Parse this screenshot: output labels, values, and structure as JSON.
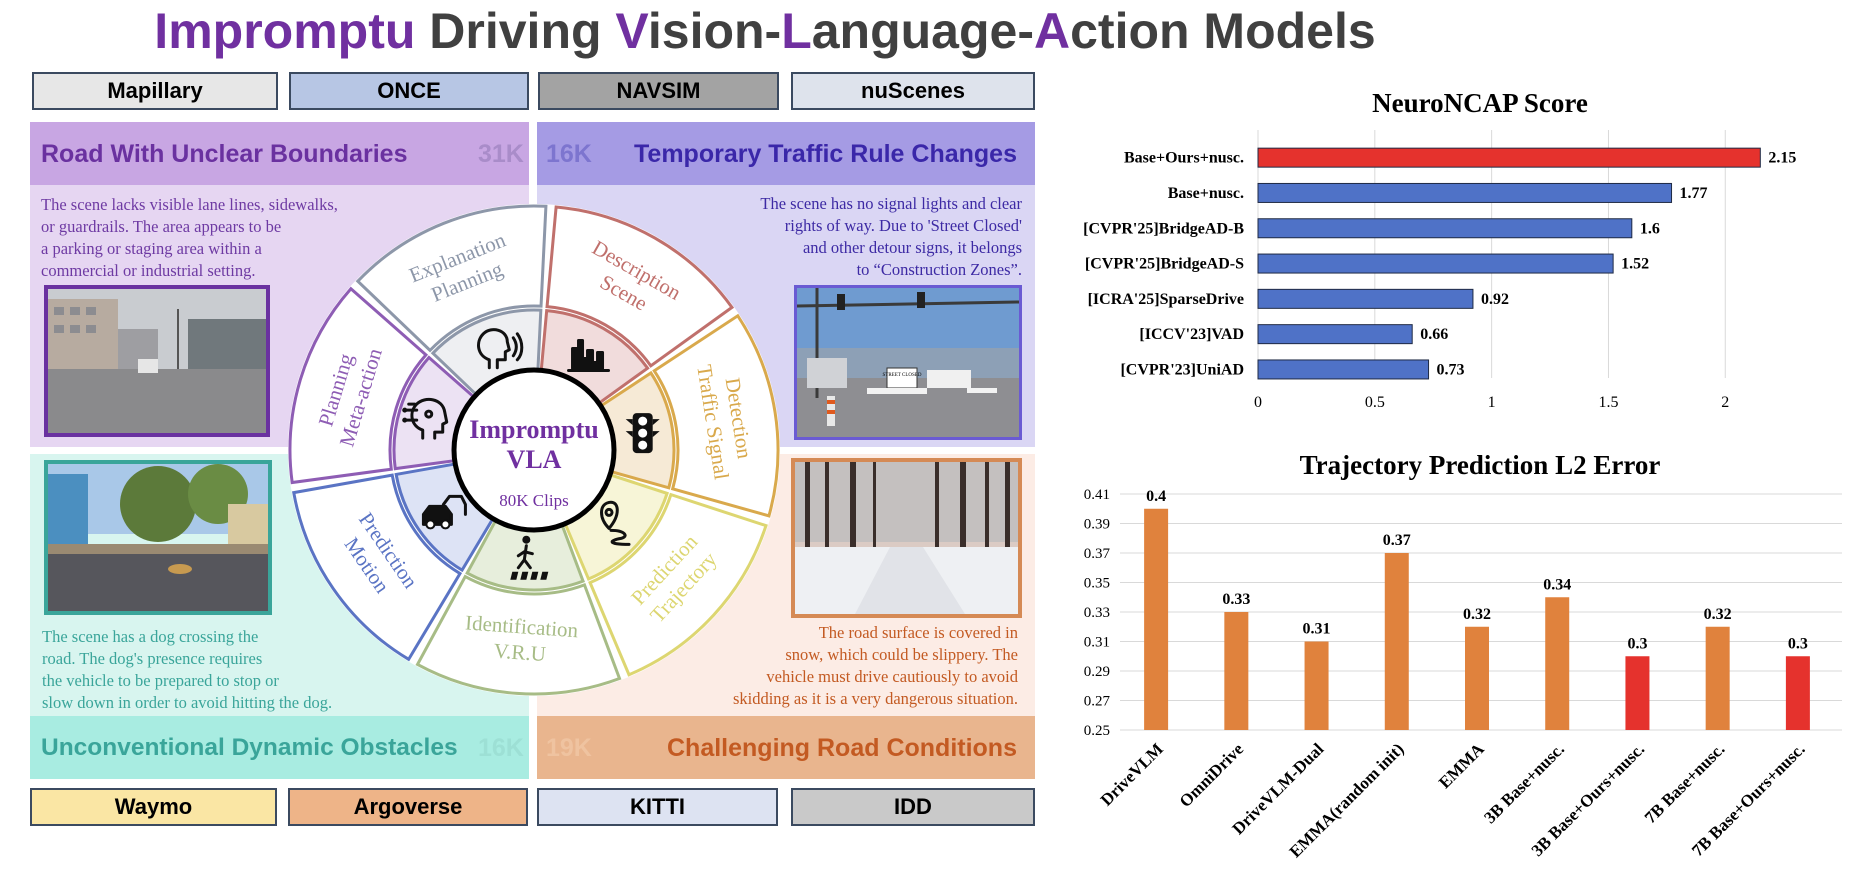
{
  "title": {
    "parts": [
      {
        "text": "Impromptu",
        "accent": true
      },
      {
        "text": " Driving ",
        "accent": false
      },
      {
        "text": "V",
        "accent": true
      },
      {
        "text": "ision-",
        "accent": false
      },
      {
        "text": "L",
        "accent": true
      },
      {
        "text": "anguage-",
        "accent": false
      },
      {
        "text": "A",
        "accent": true
      },
      {
        "text": "ction Models",
        "accent": false
      }
    ]
  },
  "datasets": {
    "mapillary": "Mapillary",
    "once": "ONCE",
    "navsim": "NAVSIM",
    "nuscenes": "nuScenes",
    "waymo": "Waymo",
    "argoverse": "Argoverse",
    "kitti": "KITTI",
    "idd": "IDD"
  },
  "quadrants": {
    "tl": {
      "title": "Road With Unclear Boundaries",
      "count": "31K",
      "lines": [
        "The scene lacks visible lane lines, sidewalks,",
        "or guardrails. The area appears to be",
        "a parking or staging area within a",
        "commercial or industrial setting."
      ]
    },
    "tr": {
      "title": "Temporary Traffic Rule Changes",
      "count": "16K",
      "lines": [
        "The scene has no signal lights and clear",
        "rights  of way. Due to 'Street Closed'",
        "and other detour signs, it belongs",
        "to “Construction Zones”."
      ],
      "sign": "STREET CLOSED"
    },
    "bl": {
      "title": "Unconventional Dynamic Obstacles",
      "count": "16K",
      "lines": [
        "The scene has a dog crossing the",
        "road. The dog's presence requires",
        "the vehicle to be prepared to stop or",
        "slow down in order to avoid hitting the dog."
      ]
    },
    "br": {
      "title": "Challenging Road Conditions",
      "count": "19K",
      "lines": [
        "The road surface is covered in",
        "snow, which could be slippery. The",
        "vehicle must drive cautiously to avoid",
        "skidding as it is a very dangerous situation."
      ]
    }
  },
  "wheel": {
    "center_line1": "Impromptu",
    "center_line2": "VLA",
    "center_sub": "80K Clips",
    "segments": [
      {
        "lines": [
          "Scene",
          "Description"
        ],
        "color": "#c0706c",
        "fill": "#f1dcdc",
        "icon": "city-icon"
      },
      {
        "lines": [
          "Traffic Signal",
          "Detection"
        ],
        "color": "#d9a94c",
        "fill": "#f6ead6",
        "icon": "traffic-light-icon"
      },
      {
        "lines": [
          "Trajectory",
          "Prediction"
        ],
        "color": "#ddd671",
        "fill": "#f7f5d7",
        "icon": "location-path-icon"
      },
      {
        "lines": [
          "V.R.U",
          "Identification"
        ],
        "color": "#a7bc86",
        "fill": "#e7eedc",
        "icon": "pedestrian-crossing-icon"
      },
      {
        "lines": [
          "Motion",
          "Prediction"
        ],
        "color": "#5a74c4",
        "fill": "#dde3f5",
        "icon": "cars-icon"
      },
      {
        "lines": [
          "Meta-action",
          "Planning"
        ],
        "color": "#8e5db4",
        "fill": "#ece2f3",
        "icon": "ai-head-icon"
      },
      {
        "lines": [
          "Planning",
          "Explanation"
        ],
        "color": "#8d97a9",
        "fill": "#eeeff2",
        "icon": "speaking-head-icon"
      }
    ]
  },
  "neuro_chart": {
    "chart_data": {
      "type": "bar",
      "orientation": "horizontal",
      "title": "NeuroNCAP Score",
      "categories": [
        "Base+Ours+nusc.",
        "Base+nusc.",
        "[CVPR'25]BridgeAD-B",
        "[CVPR'25]BridgeAD-S",
        "[ICRA'25]SparseDrive",
        "[ICCV'23]VAD",
        "[CVPR'23]UniAD"
      ],
      "values": [
        2.15,
        1.77,
        1.6,
        1.52,
        0.92,
        0.66,
        0.73
      ],
      "value_labels": [
        "2.15",
        "1.77",
        "1.6",
        "1.52",
        "0.92",
        "0.66",
        "0.73"
      ],
      "colors": [
        "#e5322d",
        "#4f72c7",
        "#4f72c7",
        "#4f72c7",
        "#4f72c7",
        "#4f72c7",
        "#4f72c7"
      ],
      "xlim": [
        0,
        2.2
      ],
      "xticks": [
        0,
        0.5,
        1,
        1.5,
        2
      ],
      "xtick_labels": [
        "0",
        "0.5",
        "1",
        "1.5",
        "2"
      ],
      "grid": true
    }
  },
  "l2_chart": {
    "chart_data": {
      "type": "bar",
      "title": "Trajectory Prediction L2 Error",
      "categories": [
        "DriveVLM",
        "OmniDrive",
        "DriveVLM-Dual",
        "EMMA(random init)",
        "EMMA",
        "3B Base+nusc.",
        "3B Base+Ours+nusc.",
        "7B Base+nusc.",
        "7B Base+Ours+nusc."
      ],
      "values": [
        0.4,
        0.33,
        0.31,
        0.37,
        0.32,
        0.34,
        0.3,
        0.32,
        0.3
      ],
      "value_labels": [
        "0.4",
        "0.33",
        "0.31",
        "0.37",
        "0.32",
        "0.34",
        "0.3",
        "0.32",
        "0.3"
      ],
      "colors": [
        "#e0823d",
        "#e0823d",
        "#e0823d",
        "#e0823d",
        "#e0823d",
        "#e0823d",
        "#e5322d",
        "#e0823d",
        "#e5322d"
      ],
      "ylim": [
        0.25,
        0.41
      ],
      "yticks": [
        0.25,
        0.27,
        0.29,
        0.31,
        0.33,
        0.35,
        0.37,
        0.39,
        0.41
      ],
      "ytick_labels": [
        "0.25",
        "0.27",
        "0.29",
        "0.31",
        "0.33",
        "0.35",
        "0.37",
        "0.39",
        "0.41"
      ],
      "grid": true
    }
  }
}
